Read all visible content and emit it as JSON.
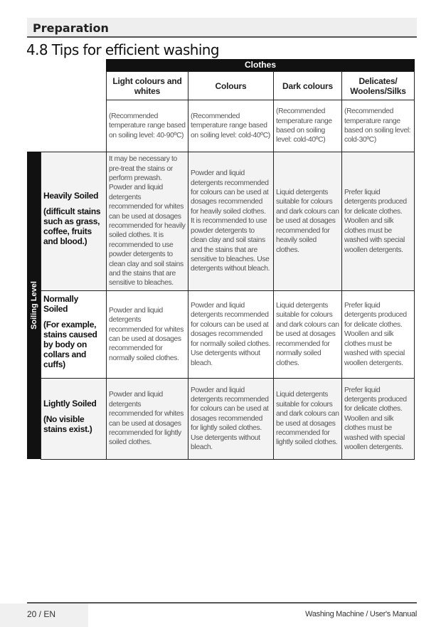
{
  "section": "Preparation",
  "title": "4.8 Tips for efficient washing",
  "table": {
    "group_header": "Clothes",
    "side_label": "Soiling Level",
    "columns": [
      "Light colours and whites",
      "Colours",
      "Dark colours",
      "Delicates/ Woolens/Silks"
    ],
    "temperatures": [
      "(Recommended temperature range based on soiling level: 40-90ºC)",
      "(Recommended temperature range based on soiling level: cold-40ºC)",
      "(Recommended temperature range based on soiling level: cold-40ºC)",
      "(Recommended temperature range based on soiling level: cold-30ºC)"
    ],
    "rows": [
      {
        "label": "Heavily Soiled",
        "sublabel": "(difficult stains such as grass, coffee, fruits and blood.)",
        "cells": [
          "It may be necessary to pre-treat the stains or perform prewash. Powder and liquid detergents recommended for whites can be used at dosages recommended for heavily soiled clothes. It is recommended to use powder detergents to clean clay and soil stains and the stains that are sensitive to bleaches.",
          "Powder and liquid detergents recommended for colours can be used at dosages recommended for heavily soiled clothes. It is recommended to use powder detergents to clean clay and soil stains and the stains that are sensitive to bleaches. Use detergents without bleach.",
          "Liquid detergents suitable for colours and dark colours can be used at dosages recommended for heavily soiled clothes.",
          "Prefer liquid detergents produced for delicate clothes. Woollen and silk clothes must be washed with special woollen detergents."
        ]
      },
      {
        "label": "Normally Soiled",
        "sublabel": "(For example, stains caused by body on collars and cuffs)",
        "cells": [
          "Powder and liquid detergents recommended for whites can be used at dosages recommended for normally soiled clothes.",
          "Powder and liquid detergents recommended for colours can be used at dosages recommended for normally soiled clothes. Use detergents without bleach.",
          "Liquid detergents suitable for colours and dark colours can be used at dosages recommended for normally soiled clothes.",
          "Prefer liquid detergents produced for delicate clothes. Woollen and silk clothes must be washed with special woollen detergents."
        ]
      },
      {
        "label": "Lightly Soiled",
        "sublabel": "(No visible stains exist.)",
        "cells": [
          "Powder and liquid detergents recommended for whites can be used at dosages recommended for lightly soiled clothes.",
          "Powder and liquid detergents recommended for colours can be used at dosages recommended for lightly soiled clothes. Use detergents without bleach.",
          "Liquid detergents suitable for colours and dark colours can be used at dosages recommended for lightly soiled clothes.",
          "Prefer liquid detergents produced for delicate clothes. Woollen and silk clothes must be washed with special woollen detergents."
        ]
      }
    ]
  },
  "footer": {
    "page": "20 / EN",
    "manual": "Washing Machine / User's Manual"
  }
}
